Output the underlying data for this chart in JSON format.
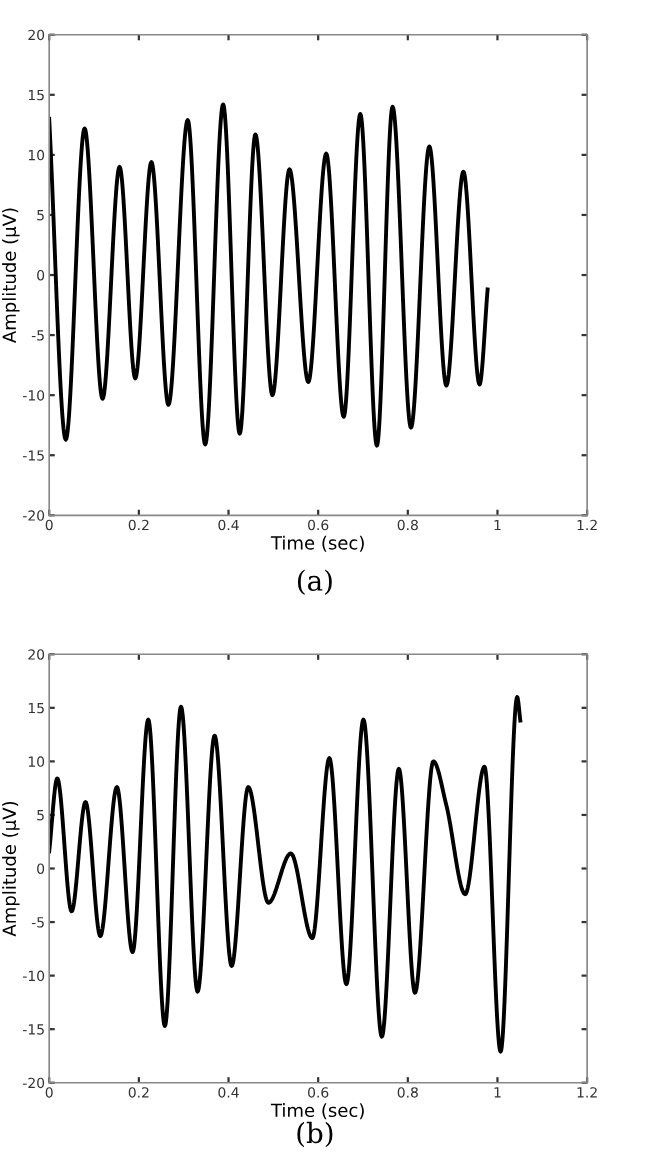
{
  "chart_data": [
    {
      "type": "line",
      "xlabel": "Time (sec)",
      "ylabel": "Amplitude (µV)",
      "annotations": [
        "(a)"
      ],
      "xlim": [
        0,
        1.2
      ],
      "ylim": [
        -20,
        20
      ],
      "xticks": [
        0,
        0.2,
        0.4,
        0.6,
        0.8,
        1,
        1.2
      ],
      "yticks": [
        -20,
        -15,
        -10,
        -5,
        0,
        5,
        10,
        15,
        20
      ],
      "grid": false,
      "legend": false,
      "marker": "none",
      "line_style": "solid",
      "series": [
        {
          "color": "#000000",
          "x": [
            0,
            0.037,
            0.079,
            0.119,
            0.157,
            0.192,
            0.228,
            0.266,
            0.309,
            0.348,
            0.388,
            0.425,
            0.46,
            0.498,
            0.536,
            0.578,
            0.618,
            0.657,
            0.694,
            0.731,
            0.766,
            0.807,
            0.848,
            0.886,
            0.924,
            0.96,
            0.978
          ],
          "values": [
            13,
            -13.7,
            12.2,
            -10.3,
            9.0,
            -8.6,
            9.4,
            -10.8,
            12.9,
            -14.1,
            14.2,
            -13.2,
            11.7,
            -10.0,
            8.8,
            -8.9,
            10.1,
            -11.8,
            13.4,
            -14.2,
            14.0,
            -12.7,
            10.7,
            -9.2,
            8.6,
            -9.1,
            -1.2
          ]
        }
      ]
    },
    {
      "type": "line",
      "xlabel": "Time (sec)",
      "ylabel": "Amplitude (µV)",
      "annotations": [
        "(b)"
      ],
      "xlim": [
        0,
        1.2
      ],
      "ylim": [
        -20,
        20
      ],
      "xticks": [
        0,
        0.2,
        0.4,
        0.6,
        0.8,
        1,
        1.2
      ],
      "yticks": [
        -20,
        -15,
        -10,
        -5,
        0,
        5,
        10,
        15,
        20
      ],
      "grid": false,
      "legend": false,
      "marker": "none",
      "line_style": "solid",
      "series": [
        {
          "color": "#000000",
          "x": [
            0,
            0.018,
            0.05,
            0.081,
            0.114,
            0.151,
            0.186,
            0.221,
            0.258,
            0.294,
            0.331,
            0.369,
            0.407,
            0.444,
            0.489,
            0.539,
            0.587,
            0.625,
            0.663,
            0.701,
            0.742,
            0.78,
            0.816,
            0.857,
            0.886,
            0.928,
            0.971,
            1.007,
            1.044,
            1.051
          ],
          "values": [
            1.6,
            8.4,
            -4.0,
            6.2,
            -6.3,
            7.6,
            -7.8,
            13.9,
            -14.7,
            15.1,
            -11.5,
            12.4,
            -9.1,
            7.6,
            -3.2,
            1.4,
            -6.5,
            10.3,
            -10.8,
            13.9,
            -15.7,
            9.3,
            -11.6,
            10.0,
            5.9,
            -2.4,
            9.5,
            -17.1,
            16.0,
            13.8
          ]
        }
      ]
    }
  ]
}
